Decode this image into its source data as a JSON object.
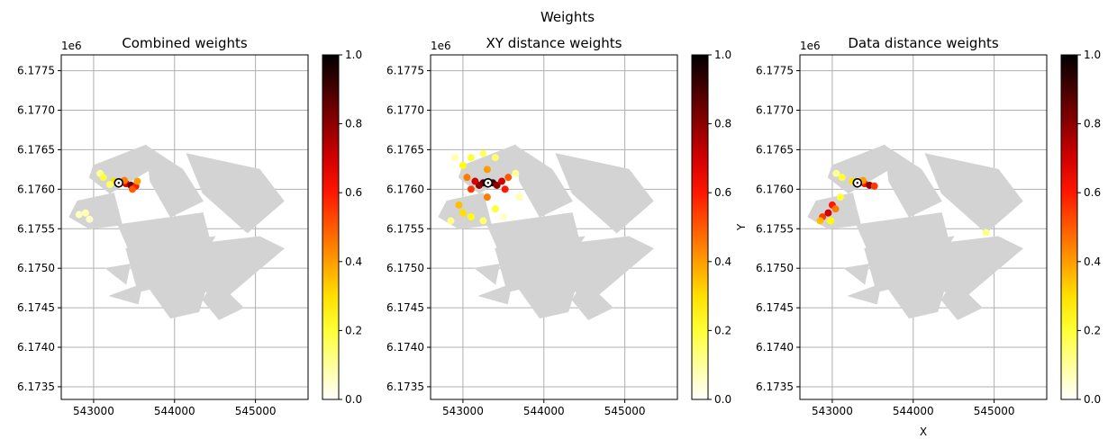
{
  "figure": {
    "suptitle": "Weights"
  },
  "chart_data": [
    {
      "type": "heatmap",
      "title": "Combined weights",
      "offset_label": "1e6",
      "xlabel": "",
      "ylabel": "",
      "xlim": [
        542600,
        545650
      ],
      "ylim": [
        6173340,
        6177700
      ],
      "xticks": [
        543000,
        544000,
        545000
      ],
      "xtick_labels": [
        "543000",
        "544000",
        "545000"
      ],
      "yticks": [
        6173500,
        6174000,
        6174500,
        6175000,
        6175500,
        6176000,
        6176500,
        6177000,
        6177500
      ],
      "ytick_labels": [
        "6.1735",
        "6.1740",
        "6.1745",
        "6.1750",
        "6.1755",
        "6.1760",
        "6.1765",
        "6.1770",
        "6.1775"
      ],
      "grid": true,
      "colorbar": {
        "min": 0.0,
        "max": 1.0,
        "ticks": [
          0.0,
          0.2,
          0.4,
          0.6,
          0.8,
          1.0
        ],
        "tick_labels": [
          "0.0",
          "0.2",
          "0.4",
          "0.6",
          "0.8",
          "1.0"
        ],
        "colormap": "hot_r"
      },
      "target_point": [
        543310,
        6176080
      ],
      "weighted_points": [
        {
          "x": 543400,
          "y": 6176070,
          "w": 0.65
        },
        {
          "x": 543460,
          "y": 6176050,
          "w": 0.85
        },
        {
          "x": 543520,
          "y": 6176040,
          "w": 0.6
        },
        {
          "x": 543380,
          "y": 6176110,
          "w": 0.45
        },
        {
          "x": 543250,
          "y": 6176100,
          "w": 0.3
        },
        {
          "x": 543200,
          "y": 6176060,
          "w": 0.15
        },
        {
          "x": 543080,
          "y": 6176200,
          "w": 0.1
        },
        {
          "x": 543120,
          "y": 6176150,
          "w": 0.2
        },
        {
          "x": 543540,
          "y": 6176100,
          "w": 0.4
        },
        {
          "x": 543480,
          "y": 6176000,
          "w": 0.5
        },
        {
          "x": 542900,
          "y": 6175700,
          "w": 0.08
        },
        {
          "x": 542950,
          "y": 6175620,
          "w": 0.05
        },
        {
          "x": 542820,
          "y": 6175680,
          "w": 0.06
        }
      ]
    },
    {
      "type": "heatmap",
      "title": "XY distance weights",
      "offset_label": "1e6",
      "xlabel": "",
      "ylabel": "Y",
      "xlim": [
        542600,
        545650
      ],
      "ylim": [
        6173340,
        6177700
      ],
      "xticks": [
        543000,
        544000,
        545000
      ],
      "xtick_labels": [
        "543000",
        "544000",
        "545000"
      ],
      "yticks": [
        6173500,
        6174000,
        6174500,
        6175000,
        6175500,
        6176000,
        6176500,
        6177000,
        6177500
      ],
      "ytick_labels": [
        "6.1735",
        "6.1740",
        "6.1745",
        "6.1750",
        "6.1755",
        "6.1760",
        "6.1765",
        "6.1770",
        "6.1775"
      ],
      "grid": true,
      "colorbar": {
        "min": 0.0,
        "max": 1.0,
        "ticks": [
          0.0,
          0.2,
          0.4,
          0.6,
          0.8,
          1.0
        ],
        "tick_labels": [
          "0.0",
          "0.2",
          "0.4",
          "0.6",
          "0.8",
          "1.0"
        ],
        "colormap": "hot_r"
      },
      "target_point": [
        543310,
        6176080
      ],
      "weighted_points": [
        {
          "x": 543310,
          "y": 6176080,
          "w": 1.0
        },
        {
          "x": 543250,
          "y": 6176080,
          "w": 0.9
        },
        {
          "x": 543370,
          "y": 6176080,
          "w": 0.9
        },
        {
          "x": 543200,
          "y": 6176050,
          "w": 0.8
        },
        {
          "x": 543420,
          "y": 6176050,
          "w": 0.8
        },
        {
          "x": 543150,
          "y": 6176100,
          "w": 0.7
        },
        {
          "x": 543480,
          "y": 6176100,
          "w": 0.7
        },
        {
          "x": 543100,
          "y": 6176000,
          "w": 0.55
        },
        {
          "x": 543520,
          "y": 6176000,
          "w": 0.6
        },
        {
          "x": 543050,
          "y": 6176150,
          "w": 0.45
        },
        {
          "x": 543560,
          "y": 6176150,
          "w": 0.5
        },
        {
          "x": 543000,
          "y": 6176300,
          "w": 0.25
        },
        {
          "x": 543100,
          "y": 6176400,
          "w": 0.2
        },
        {
          "x": 543250,
          "y": 6176450,
          "w": 0.15
        },
        {
          "x": 543400,
          "y": 6176400,
          "w": 0.15
        },
        {
          "x": 542950,
          "y": 6175800,
          "w": 0.35
        },
        {
          "x": 543000,
          "y": 6175700,
          "w": 0.3
        },
        {
          "x": 543100,
          "y": 6175650,
          "w": 0.25
        },
        {
          "x": 543250,
          "y": 6175600,
          "w": 0.15
        },
        {
          "x": 542850,
          "y": 6175600,
          "w": 0.12
        },
        {
          "x": 543400,
          "y": 6175750,
          "w": 0.2
        },
        {
          "x": 543650,
          "y": 6176200,
          "w": 0.1
        },
        {
          "x": 543700,
          "y": 6175900,
          "w": 0.08
        },
        {
          "x": 542900,
          "y": 6176400,
          "w": 0.08
        },
        {
          "x": 543500,
          "y": 6175650,
          "w": 0.06
        },
        {
          "x": 543300,
          "y": 6176250,
          "w": 0.4
        },
        {
          "x": 543300,
          "y": 6175900,
          "w": 0.45
        }
      ]
    },
    {
      "type": "heatmap",
      "title": "Data distance weights",
      "offset_label": "1e6",
      "xlabel": "X",
      "ylabel": "",
      "xlim": [
        542600,
        545650
      ],
      "ylim": [
        6173340,
        6177700
      ],
      "xticks": [
        543000,
        544000,
        545000
      ],
      "xtick_labels": [
        "543000",
        "544000",
        "545000"
      ],
      "yticks": [
        6173500,
        6174000,
        6174500,
        6175000,
        6175500,
        6176000,
        6176500,
        6177000,
        6177500
      ],
      "ytick_labels": [
        "6.1735",
        "6.1740",
        "6.1745",
        "6.1750",
        "6.1755",
        "6.1760",
        "6.1765",
        "6.1770",
        "6.1775"
      ],
      "grid": true,
      "colorbar": {
        "min": 0.0,
        "max": 1.0,
        "ticks": [
          0.0,
          0.2,
          0.4,
          0.6,
          0.8,
          1.0
        ],
        "tick_labels": [
          "0.0",
          "0.2",
          "0.4",
          "0.6",
          "0.8",
          "1.0"
        ],
        "colormap": "hot_r"
      },
      "target_point": [
        543310,
        6176080
      ],
      "weighted_points": [
        {
          "x": 543400,
          "y": 6176070,
          "w": 0.6
        },
        {
          "x": 543460,
          "y": 6176050,
          "w": 0.8
        },
        {
          "x": 543520,
          "y": 6176040,
          "w": 0.55
        },
        {
          "x": 543380,
          "y": 6176110,
          "w": 0.4
        },
        {
          "x": 543250,
          "y": 6176100,
          "w": 0.3
        },
        {
          "x": 543120,
          "y": 6176150,
          "w": 0.2
        },
        {
          "x": 543050,
          "y": 6176200,
          "w": 0.1
        },
        {
          "x": 542880,
          "y": 6175650,
          "w": 0.55
        },
        {
          "x": 542950,
          "y": 6175700,
          "w": 0.7
        },
        {
          "x": 543000,
          "y": 6175800,
          "w": 0.6
        },
        {
          "x": 543040,
          "y": 6175750,
          "w": 0.45
        },
        {
          "x": 542850,
          "y": 6175600,
          "w": 0.35
        },
        {
          "x": 542980,
          "y": 6175600,
          "w": 0.25
        },
        {
          "x": 543100,
          "y": 6175900,
          "w": 0.2
        },
        {
          "x": 544900,
          "y": 6175450,
          "w": 0.12
        }
      ]
    }
  ]
}
